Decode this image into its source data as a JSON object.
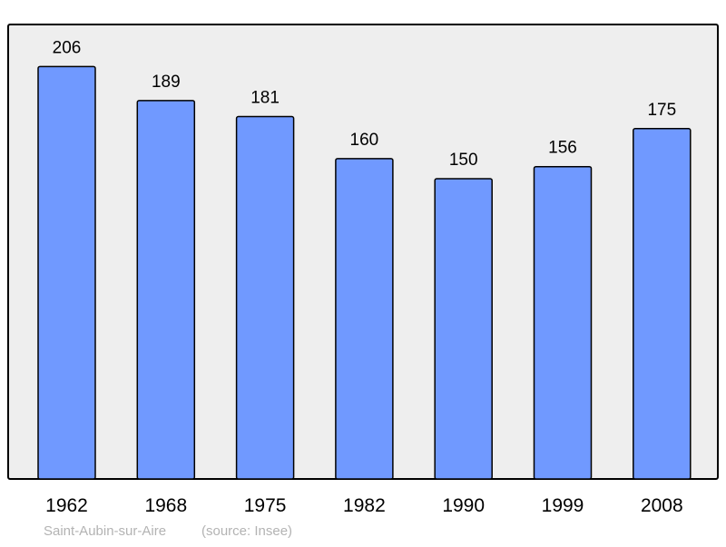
{
  "chart_data": {
    "type": "bar",
    "title": "",
    "xlabel": "",
    "ylabel": "",
    "categories": [
      "1962",
      "1968",
      "1975",
      "1982",
      "1990",
      "1999",
      "2008"
    ],
    "values": [
      206,
      189,
      181,
      160,
      150,
      156,
      175
    ],
    "ylim": [
      0,
      227
    ],
    "grid": false,
    "data_labels": true,
    "colors": {
      "bar": "#7099ff",
      "bar_stroke": "#000000",
      "plot_bg": "#eeeeee",
      "footer": "#b3b3b3"
    }
  },
  "footer": {
    "place": "Saint-Aubin-sur-Aire",
    "source": "(source: Insee)"
  }
}
